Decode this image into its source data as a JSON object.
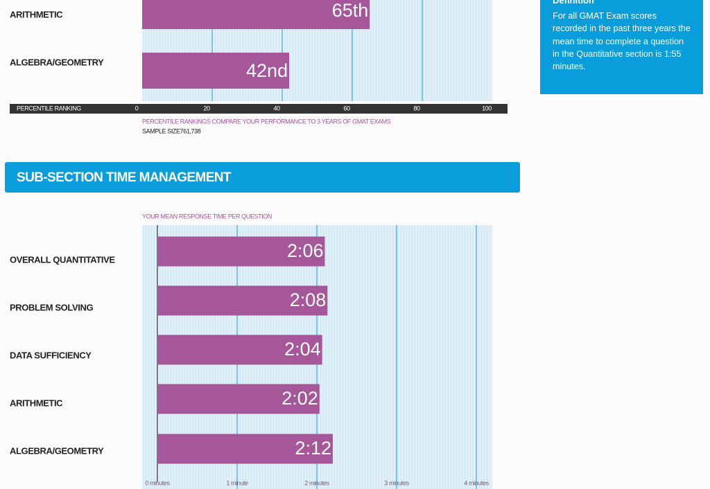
{
  "chart_data": [
    {
      "type": "bar",
      "orientation": "horizontal",
      "categories": [
        "ARITHMETIC",
        "ALGEBRA/GEOMETRY"
      ],
      "values": [
        65,
        42
      ],
      "value_labels": [
        "65th",
        "42nd"
      ],
      "color": "#a5579a",
      "xlim": [
        0,
        100
      ],
      "xticks": [
        0,
        20,
        40,
        60,
        80,
        100
      ],
      "grid": true,
      "xlabel": "PERCENTILE RANKING",
      "notes": [
        "PERCENTILE RANKINGS COMPARE YOUR PERFORMANCE TO 3 YEARS OF GMAT EXAMS",
        "SAMPLE SIZE761,738"
      ]
    },
    {
      "type": "bar",
      "orientation": "horizontal",
      "title": "YOUR MEAN RESPONSE TIME PER QUESTION",
      "categories": [
        "OVERALL QUANTITATIVE",
        "PROBLEM SOLVING",
        "DATA SUFFICIENCY",
        "ARITHMETIC",
        "ALGEBRA/GEOMETRY"
      ],
      "values": [
        2.1,
        2.133333,
        2.066667,
        2.033333,
        2.2
      ],
      "value_labels": [
        "2:06",
        "2:08",
        "2:04",
        "2:02",
        "2:12"
      ],
      "color": "#a5579a",
      "xlim": [
        0,
        4
      ],
      "grid": true,
      "xticks": [
        {
          "value": 0,
          "label": "0 minutes"
        },
        {
          "value": 1,
          "label": "1 minute"
        },
        {
          "value": 2,
          "label": "2 minutes"
        },
        {
          "value": 3,
          "label": "3 minutes"
        },
        {
          "value": 4,
          "label": "4 minutes"
        }
      ]
    }
  ],
  "section_heading": "SUB-SECTION TIME MANAGEMENT",
  "definition": {
    "title": "Definition",
    "text": "For all GMAT Exam scores recorded in the past three years the mean time to complete a question in the Quantitative section is 1:55 minutes."
  }
}
